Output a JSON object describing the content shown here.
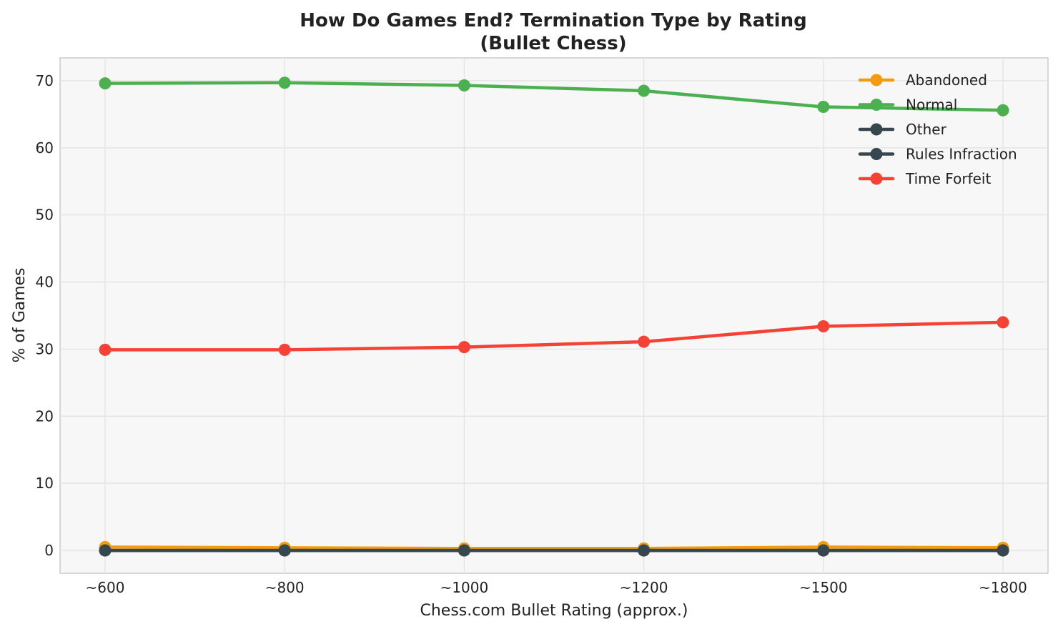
{
  "chart_data": {
    "type": "line",
    "title": "How Do Games End? Termination Type by Rating",
    "subtitle": "(Bullet Chess)",
    "xlabel": "Chess.com Bullet Rating (approx.)",
    "ylabel": "% of Games",
    "categories": [
      "~600",
      "~800",
      "~1000",
      "~1200",
      "~1500",
      "~1800"
    ],
    "ylim": [
      -3.4,
      73.4
    ],
    "yticks": [
      0,
      10,
      20,
      30,
      40,
      50,
      60,
      70
    ],
    "grid": true,
    "legend_position": "top-right",
    "series": [
      {
        "name": "Abandoned",
        "color": "#f39c12",
        "values": [
          0.5,
          0.4,
          0.3,
          0.3,
          0.5,
          0.4
        ]
      },
      {
        "name": "Normal",
        "color": "#4caf50",
        "values": [
          69.6,
          69.7,
          69.3,
          68.5,
          66.1,
          65.6
        ]
      },
      {
        "name": "Other",
        "color": "#37474f",
        "values": [
          0.0,
          0.0,
          0.0,
          0.0,
          0.0,
          0.0
        ]
      },
      {
        "name": "Rules Infraction",
        "color": "#37474f",
        "values": [
          0.0,
          0.0,
          0.0,
          0.0,
          0.0,
          0.0
        ]
      },
      {
        "name": "Time Forfeit",
        "color": "#f44336",
        "values": [
          29.9,
          29.9,
          30.3,
          31.1,
          33.4,
          34.0
        ]
      }
    ]
  }
}
